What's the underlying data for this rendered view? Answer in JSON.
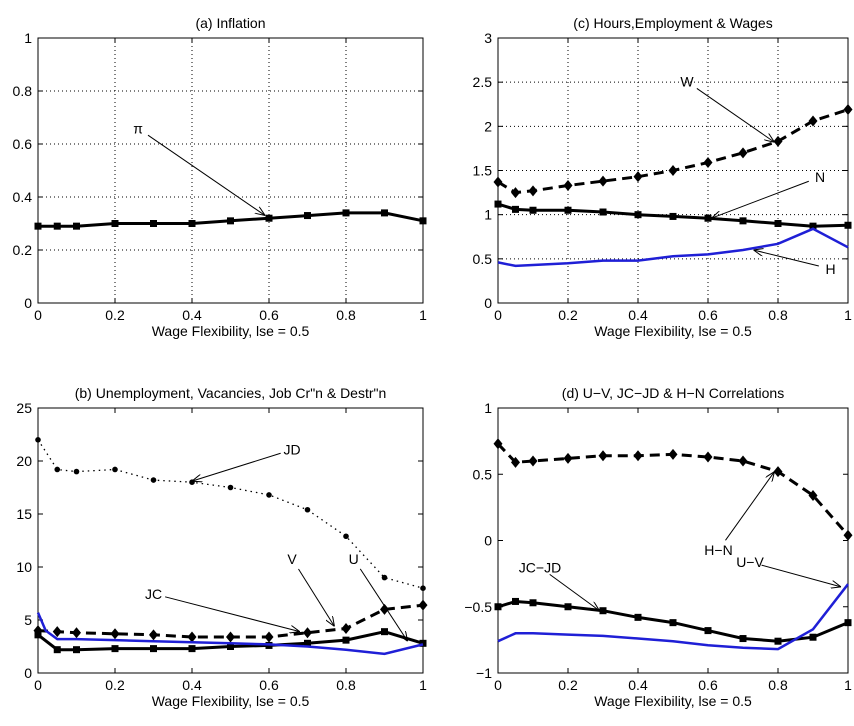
{
  "chart_data": [
    {
      "type": "line",
      "title": "(a) Inflation",
      "xlabel": "Wage Flexibility, lse = 0.5",
      "xlim": [
        0,
        1
      ],
      "ylim": [
        0,
        1
      ],
      "xticks": [
        0,
        0.2,
        0.4,
        0.6,
        0.8,
        1
      ],
      "yticks": [
        0,
        0.2,
        0.4,
        0.6,
        0.8,
        1
      ],
      "grid": true,
      "series": [
        {
          "name": "π",
          "color": "#000000",
          "style": "solid",
          "marker": "square",
          "x": [
            0,
            0.05,
            0.1,
            0.2,
            0.3,
            0.4,
            0.5,
            0.6,
            0.7,
            0.8,
            0.9,
            1.0
          ],
          "y": [
            0.29,
            0.29,
            0.29,
            0.3,
            0.3,
            0.3,
            0.31,
            0.32,
            0.33,
            0.34,
            0.34,
            0.31
          ]
        }
      ],
      "annotations": [
        {
          "text": "π",
          "tx": 0.26,
          "ty": 0.64,
          "px": 0.59,
          "py": 0.33
        }
      ]
    },
    {
      "type": "line",
      "title": "(c) Hours,Employment & Wages",
      "xlabel": "Wage Flexibility, lse = 0.5",
      "xlim": [
        0,
        1
      ],
      "ylim": [
        0,
        3
      ],
      "xticks": [
        0,
        0.2,
        0.4,
        0.6,
        0.8,
        1
      ],
      "yticks": [
        0,
        0.5,
        1,
        1.5,
        2,
        2.5,
        3
      ],
      "grid": true,
      "series": [
        {
          "name": "W",
          "color": "#000000",
          "style": "dashed",
          "marker": "diamond",
          "x": [
            0,
            0.05,
            0.1,
            0.2,
            0.3,
            0.4,
            0.5,
            0.6,
            0.7,
            0.8,
            0.9,
            1.0
          ],
          "y": [
            1.37,
            1.25,
            1.27,
            1.33,
            1.38,
            1.43,
            1.5,
            1.59,
            1.7,
            1.83,
            2.06,
            2.19
          ]
        },
        {
          "name": "N",
          "color": "#000000",
          "style": "solid",
          "marker": "square",
          "x": [
            0,
            0.05,
            0.1,
            0.2,
            0.3,
            0.4,
            0.5,
            0.6,
            0.7,
            0.8,
            0.9,
            1.0
          ],
          "y": [
            1.12,
            1.06,
            1.05,
            1.05,
            1.03,
            1.0,
            0.98,
            0.96,
            0.93,
            0.9,
            0.87,
            0.88
          ]
        },
        {
          "name": "H",
          "color": "#1f1fd6",
          "style": "solid",
          "marker": "none",
          "x": [
            0,
            0.05,
            0.1,
            0.2,
            0.3,
            0.4,
            0.5,
            0.6,
            0.7,
            0.8,
            0.9,
            1.0
          ],
          "y": [
            0.46,
            0.42,
            0.43,
            0.45,
            0.48,
            0.48,
            0.53,
            0.55,
            0.6,
            0.67,
            0.84,
            0.63
          ]
        }
      ],
      "annotations": [
        {
          "text": "W",
          "tx": 0.54,
          "ty": 2.45,
          "px": 0.79,
          "py": 1.82
        },
        {
          "text": "N",
          "tx": 0.92,
          "ty": 1.37,
          "px": 0.61,
          "py": 0.96
        },
        {
          "text": "H",
          "tx": 0.95,
          "ty": 0.33,
          "px": 0.73,
          "py": 0.6
        }
      ]
    },
    {
      "type": "line",
      "title": "(b) Unemployment, Vacancies, Job Cr\"n & Destr\"n",
      "xlabel": "Wage Flexibility, lse = 0.5",
      "xlim": [
        0,
        1
      ],
      "ylim": [
        0,
        25
      ],
      "xticks": [
        0,
        0.2,
        0.4,
        0.6,
        0.8,
        1
      ],
      "yticks": [
        0,
        5,
        10,
        15,
        20,
        25
      ],
      "grid": false,
      "series": [
        {
          "name": "JD",
          "color": "#000000",
          "style": "dotted",
          "marker": "dot",
          "x": [
            0,
            0.05,
            0.1,
            0.2,
            0.3,
            0.4,
            0.5,
            0.6,
            0.7,
            0.8,
            0.9,
            1.0
          ],
          "y": [
            22.0,
            19.2,
            19.0,
            19.2,
            18.2,
            18.0,
            17.5,
            16.8,
            15.4,
            12.9,
            9.0,
            8.0
          ]
        },
        {
          "name": "JC",
          "color": "#000000",
          "style": "dashed",
          "marker": "diamond",
          "x": [
            0,
            0.05,
            0.1,
            0.2,
            0.3,
            0.4,
            0.5,
            0.6,
            0.7,
            0.8,
            0.9,
            1.0
          ],
          "y": [
            4.0,
            3.9,
            3.8,
            3.7,
            3.6,
            3.4,
            3.4,
            3.4,
            3.8,
            4.2,
            6.0,
            6.4
          ]
        },
        {
          "name": "U",
          "color": "#000000",
          "style": "solid",
          "marker": "square",
          "x": [
            0,
            0.05,
            0.1,
            0.2,
            0.3,
            0.4,
            0.5,
            0.6,
            0.7,
            0.8,
            0.9,
            1.0
          ],
          "y": [
            3.6,
            2.2,
            2.2,
            2.3,
            2.3,
            2.3,
            2.5,
            2.6,
            2.8,
            3.1,
            3.9,
            2.8
          ]
        },
        {
          "name": "V",
          "color": "#1f1fd6",
          "style": "solid",
          "marker": "none",
          "x": [
            0,
            0.02,
            0.05,
            0.1,
            0.2,
            0.3,
            0.4,
            0.5,
            0.6,
            0.7,
            0.8,
            0.9,
            1.0
          ],
          "y": [
            5.7,
            4.0,
            3.2,
            3.2,
            3.1,
            3.0,
            2.9,
            2.8,
            2.7,
            2.5,
            2.2,
            1.8,
            2.7
          ]
        }
      ],
      "annotations": [
        {
          "text": "JD",
          "tx": 0.66,
          "ty": 20.6,
          "px": 0.4,
          "py": 18.1
        },
        {
          "text": "JC",
          "tx": 0.3,
          "ty": 7.0,
          "px": 0.68,
          "py": 3.9
        },
        {
          "text": "V",
          "tx": 0.66,
          "ty": 10.3,
          "px": 0.77,
          "py": 4.4
        },
        {
          "text": "U",
          "tx": 0.82,
          "ty": 10.3,
          "px": 0.96,
          "py": 3.0
        }
      ]
    },
    {
      "type": "line",
      "title": "(d) U−V, JC−JD & H−N Correlations",
      "xlabel": "Wage Flexibility, lse = 0.5",
      "xlim": [
        0,
        1
      ],
      "ylim": [
        -1,
        1
      ],
      "xticks": [
        0,
        0.2,
        0.4,
        0.6,
        0.8,
        1
      ],
      "yticks": [
        -1,
        -0.5,
        0,
        0.5,
        1
      ],
      "grid": false,
      "series": [
        {
          "name": "H−N",
          "color": "#000000",
          "style": "dashed",
          "marker": "diamond",
          "x": [
            0,
            0.05,
            0.1,
            0.2,
            0.3,
            0.4,
            0.5,
            0.6,
            0.7,
            0.8,
            0.9,
            1.0
          ],
          "y": [
            0.73,
            0.59,
            0.6,
            0.62,
            0.64,
            0.64,
            0.65,
            0.63,
            0.6,
            0.52,
            0.34,
            0.04
          ]
        },
        {
          "name": "JC−JD",
          "color": "#000000",
          "style": "solid",
          "marker": "square",
          "x": [
            0,
            0.05,
            0.1,
            0.2,
            0.3,
            0.4,
            0.5,
            0.6,
            0.7,
            0.8,
            0.9,
            1.0
          ],
          "y": [
            -0.5,
            -0.46,
            -0.47,
            -0.5,
            -0.53,
            -0.58,
            -0.62,
            -0.68,
            -0.74,
            -0.76,
            -0.73,
            -0.62
          ]
        },
        {
          "name": "U−V",
          "color": "#1f1fd6",
          "style": "solid",
          "marker": "none",
          "x": [
            0,
            0.05,
            0.1,
            0.2,
            0.3,
            0.4,
            0.5,
            0.6,
            0.7,
            0.8,
            0.9,
            1.0
          ],
          "y": [
            -0.76,
            -0.7,
            -0.7,
            -0.71,
            -0.72,
            -0.74,
            -0.76,
            -0.79,
            -0.81,
            -0.82,
            -0.67,
            -0.33
          ]
        }
      ],
      "annotations": [
        {
          "text": "H−N",
          "tx": 0.63,
          "ty": -0.11,
          "px": 0.79,
          "py": 0.52
        },
        {
          "text": "JC−JD",
          "tx": 0.12,
          "ty": -0.24,
          "px": 0.29,
          "py": -0.53
        },
        {
          "text": "U−V",
          "tx": 0.72,
          "ty": -0.2,
          "px": 0.98,
          "py": -0.35
        }
      ]
    }
  ]
}
